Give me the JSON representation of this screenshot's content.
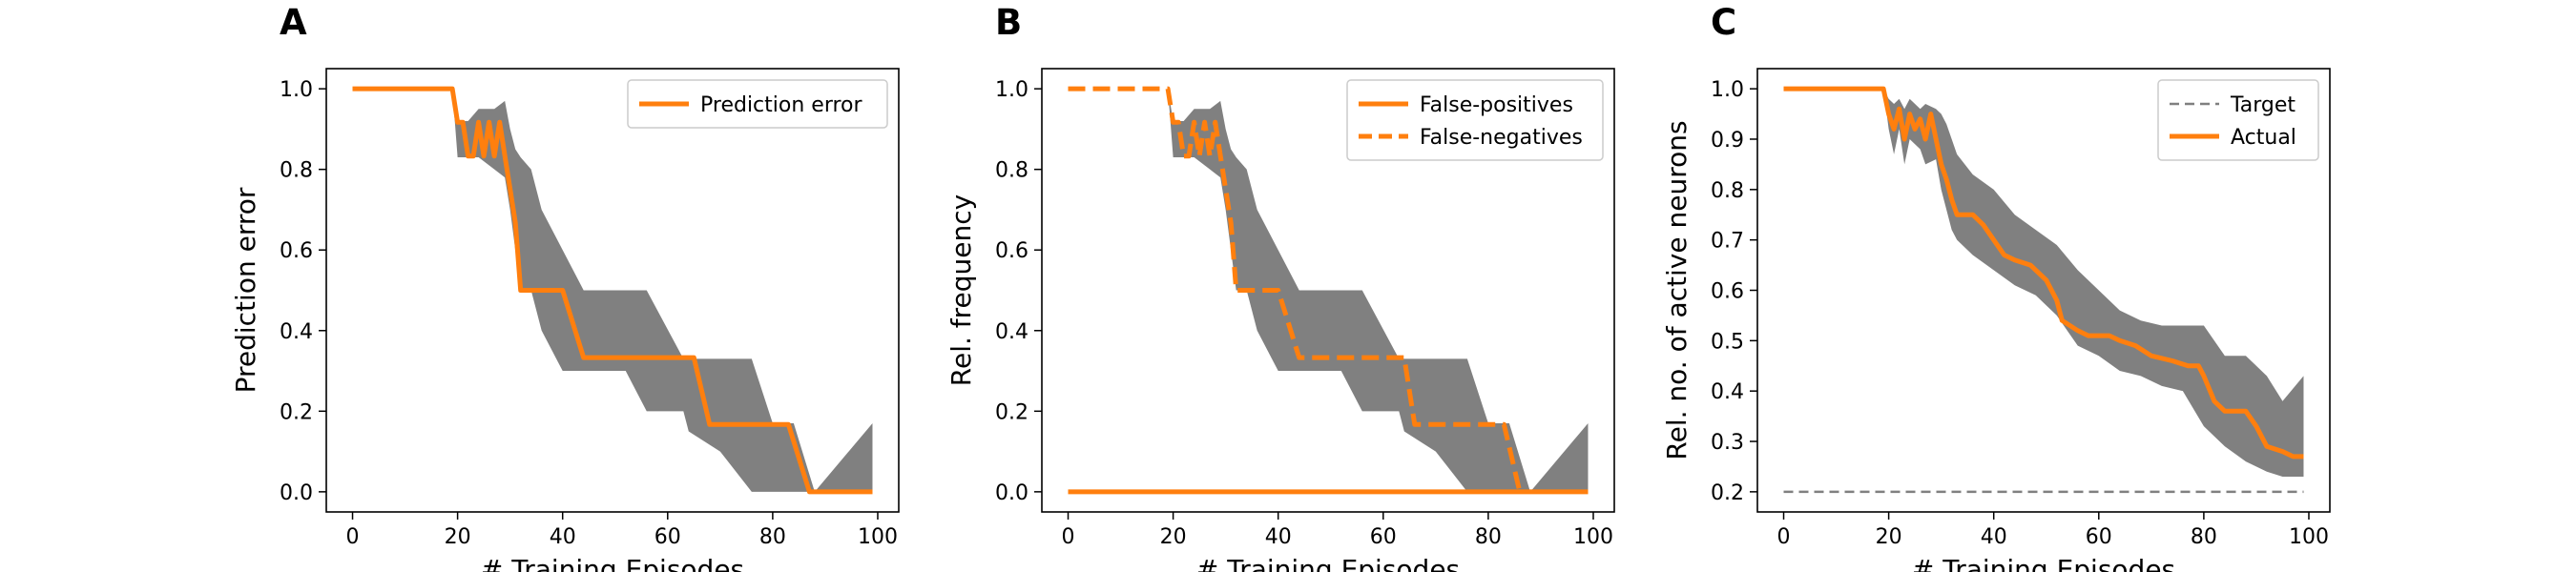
{
  "colors": {
    "series": "#ff7f0e",
    "band": "#808080",
    "target": "#808080",
    "axes": "#000000"
  },
  "chart_data": [
    {
      "type": "line",
      "panel": "A",
      "xlabel": "# Training Episodes",
      "ylabel": "Prediction error",
      "xlim": [
        -5,
        104
      ],
      "ylim": [
        -0.05,
        1.05
      ],
      "xticks": [
        0,
        20,
        40,
        60,
        80,
        100
      ],
      "yticks": [
        0.0,
        0.2,
        0.4,
        0.6,
        0.8,
        1.0
      ],
      "ytick_decimals": 1,
      "grid": false,
      "legend_position": "top-right",
      "series": [
        {
          "name": "Prediction error",
          "style": "solid",
          "points": [
            [
              0,
              1.0
            ],
            [
              19,
              1.0
            ],
            [
              20,
              0.917
            ],
            [
              21,
              0.917
            ],
            [
              22,
              0.833
            ],
            [
              23,
              0.833
            ],
            [
              24,
              0.917
            ],
            [
              25,
              0.833
            ],
            [
              26,
              0.917
            ],
            [
              27,
              0.833
            ],
            [
              28,
              0.917
            ],
            [
              29,
              0.833
            ],
            [
              30,
              0.75
            ],
            [
              31,
              0.667
            ],
            [
              32,
              0.5
            ],
            [
              40,
              0.5
            ],
            [
              44,
              0.333
            ],
            [
              65,
              0.333
            ],
            [
              68,
              0.167
            ],
            [
              83,
              0.167
            ],
            [
              87,
              0.0
            ],
            [
              99,
              0.0
            ]
          ],
          "band": [
            [
              0,
              1.0,
              1.0
            ],
            [
              19,
              1.0,
              1.0
            ],
            [
              20,
              0.83,
              0.92
            ],
            [
              22,
              0.83,
              0.92
            ],
            [
              24,
              0.83,
              0.95
            ],
            [
              27,
              0.8,
              0.95
            ],
            [
              29,
              0.78,
              0.97
            ],
            [
              30,
              0.7,
              0.9
            ],
            [
              31,
              0.6,
              0.85
            ],
            [
              32,
              0.5,
              0.83
            ],
            [
              34,
              0.5,
              0.8
            ],
            [
              36,
              0.4,
              0.7
            ],
            [
              40,
              0.3,
              0.6
            ],
            [
              42,
              0.3,
              0.55
            ],
            [
              44,
              0.3,
              0.5
            ],
            [
              52,
              0.3,
              0.5
            ],
            [
              56,
              0.2,
              0.5
            ],
            [
              63,
              0.2,
              0.33
            ],
            [
              64,
              0.15,
              0.33
            ],
            [
              70,
              0.1,
              0.33
            ],
            [
              76,
              0.0,
              0.33
            ],
            [
              80,
              0.0,
              0.17
            ],
            [
              84,
              0.0,
              0.17
            ],
            [
              88,
              0.0,
              0.0
            ],
            [
              99,
              0.0,
              0.17
            ]
          ]
        }
      ]
    },
    {
      "type": "line",
      "panel": "B",
      "xlabel": "# Training Episodes",
      "ylabel": "Rel. frequency",
      "xlim": [
        -5,
        104
      ],
      "ylim": [
        -0.05,
        1.05
      ],
      "xticks": [
        0,
        20,
        40,
        60,
        80,
        100
      ],
      "yticks": [
        0.0,
        0.2,
        0.4,
        0.6,
        0.8,
        1.0
      ],
      "ytick_decimals": 1,
      "grid": false,
      "legend_position": "top-right",
      "series": [
        {
          "name": "False-positives",
          "style": "solid",
          "points": [
            [
              0,
              0.0
            ],
            [
              99,
              0.0
            ]
          ]
        },
        {
          "name": "False-negatives",
          "style": "dashed",
          "points": [
            [
              0,
              1.0
            ],
            [
              19,
              1.0
            ],
            [
              20,
              0.917
            ],
            [
              21,
              0.917
            ],
            [
              22,
              0.833
            ],
            [
              23,
              0.833
            ],
            [
              24,
              0.917
            ],
            [
              25,
              0.833
            ],
            [
              26,
              0.917
            ],
            [
              27,
              0.833
            ],
            [
              28,
              0.917
            ],
            [
              29,
              0.833
            ],
            [
              30,
              0.75
            ],
            [
              31,
              0.667
            ],
            [
              32,
              0.5
            ],
            [
              40,
              0.5
            ],
            [
              44,
              0.333
            ],
            [
              64,
              0.333
            ],
            [
              66,
              0.167
            ],
            [
              83,
              0.167
            ],
            [
              86,
              0.0
            ]
          ],
          "band": [
            [
              0,
              1.0,
              1.0
            ],
            [
              19,
              1.0,
              1.0
            ],
            [
              20,
              0.83,
              0.92
            ],
            [
              22,
              0.83,
              0.92
            ],
            [
              24,
              0.83,
              0.95
            ],
            [
              27,
              0.8,
              0.95
            ],
            [
              29,
              0.78,
              0.97
            ],
            [
              30,
              0.7,
              0.9
            ],
            [
              31,
              0.6,
              0.85
            ],
            [
              32,
              0.5,
              0.83
            ],
            [
              34,
              0.5,
              0.8
            ],
            [
              36,
              0.4,
              0.7
            ],
            [
              40,
              0.3,
              0.6
            ],
            [
              42,
              0.3,
              0.55
            ],
            [
              44,
              0.3,
              0.5
            ],
            [
              52,
              0.3,
              0.5
            ],
            [
              56,
              0.2,
              0.5
            ],
            [
              63,
              0.2,
              0.33
            ],
            [
              64,
              0.15,
              0.33
            ],
            [
              70,
              0.1,
              0.33
            ],
            [
              76,
              0.0,
              0.33
            ],
            [
              80,
              0.0,
              0.17
            ],
            [
              84,
              0.0,
              0.17
            ],
            [
              88,
              0.0,
              0.0
            ],
            [
              99,
              0.0,
              0.17
            ]
          ]
        }
      ]
    },
    {
      "type": "line",
      "panel": "C",
      "xlabel": "# Training Episodes",
      "ylabel": "Rel. no. of active neurons",
      "xlim": [
        -5,
        104
      ],
      "ylim": [
        0.16,
        1.04
      ],
      "xticks": [
        0,
        20,
        40,
        60,
        80,
        100
      ],
      "yticks": [
        0.2,
        0.3,
        0.4,
        0.5,
        0.6,
        0.7,
        0.8,
        0.9,
        1.0
      ],
      "ytick_decimals": 1,
      "grid": false,
      "legend_position": "top-right",
      "series": [
        {
          "name": "Target",
          "style": "dashed-thin",
          "points": [
            [
              0,
              0.2
            ],
            [
              99,
              0.2
            ]
          ]
        },
        {
          "name": "Actual",
          "style": "solid",
          "points": [
            [
              0,
              1.0
            ],
            [
              19,
              1.0
            ],
            [
              20,
              0.95
            ],
            [
              21,
              0.92
            ],
            [
              22,
              0.96
            ],
            [
              23,
              0.9
            ],
            [
              24,
              0.95
            ],
            [
              25,
              0.92
            ],
            [
              26,
              0.94
            ],
            [
              27,
              0.9
            ],
            [
              28,
              0.95
            ],
            [
              29,
              0.9
            ],
            [
              30,
              0.85
            ],
            [
              31,
              0.82
            ],
            [
              32,
              0.78
            ],
            [
              33,
              0.75
            ],
            [
              36,
              0.75
            ],
            [
              38,
              0.73
            ],
            [
              40,
              0.7
            ],
            [
              42,
              0.67
            ],
            [
              44,
              0.66
            ],
            [
              47,
              0.65
            ],
            [
              50,
              0.62
            ],
            [
              52,
              0.58
            ],
            [
              53,
              0.54
            ],
            [
              56,
              0.52
            ],
            [
              58,
              0.51
            ],
            [
              62,
              0.51
            ],
            [
              64,
              0.5
            ],
            [
              67,
              0.49
            ],
            [
              70,
              0.47
            ],
            [
              74,
              0.46
            ],
            [
              77,
              0.45
            ],
            [
              79,
              0.45
            ],
            [
              80,
              0.43
            ],
            [
              82,
              0.38
            ],
            [
              84,
              0.36
            ],
            [
              88,
              0.36
            ],
            [
              90,
              0.33
            ],
            [
              92,
              0.29
            ],
            [
              95,
              0.28
            ],
            [
              97,
              0.27
            ],
            [
              99,
              0.27
            ]
          ],
          "band": [
            [
              0,
              1.0,
              1.0
            ],
            [
              19,
              1.0,
              1.0
            ],
            [
              20,
              0.92,
              0.98
            ],
            [
              21,
              0.87,
              0.97
            ],
            [
              22,
              0.92,
              0.98
            ],
            [
              23,
              0.85,
              0.96
            ],
            [
              24,
              0.9,
              0.98
            ],
            [
              26,
              0.88,
              0.96
            ],
            [
              27,
              0.85,
              0.97
            ],
            [
              29,
              0.86,
              0.96
            ],
            [
              30,
              0.8,
              0.95
            ],
            [
              31,
              0.76,
              0.93
            ],
            [
              32,
              0.72,
              0.9
            ],
            [
              33,
              0.7,
              0.87
            ],
            [
              36,
              0.67,
              0.83
            ],
            [
              40,
              0.64,
              0.8
            ],
            [
              44,
              0.61,
              0.75
            ],
            [
              48,
              0.59,
              0.72
            ],
            [
              52,
              0.55,
              0.69
            ],
            [
              56,
              0.49,
              0.64
            ],
            [
              60,
              0.47,
              0.6
            ],
            [
              64,
              0.44,
              0.56
            ],
            [
              68,
              0.43,
              0.54
            ],
            [
              72,
              0.41,
              0.53
            ],
            [
              76,
              0.4,
              0.53
            ],
            [
              80,
              0.33,
              0.53
            ],
            [
              84,
              0.29,
              0.47
            ],
            [
              88,
              0.26,
              0.47
            ],
            [
              92,
              0.24,
              0.43
            ],
            [
              95,
              0.23,
              0.38
            ],
            [
              99,
              0.23,
              0.43
            ]
          ]
        }
      ]
    }
  ]
}
